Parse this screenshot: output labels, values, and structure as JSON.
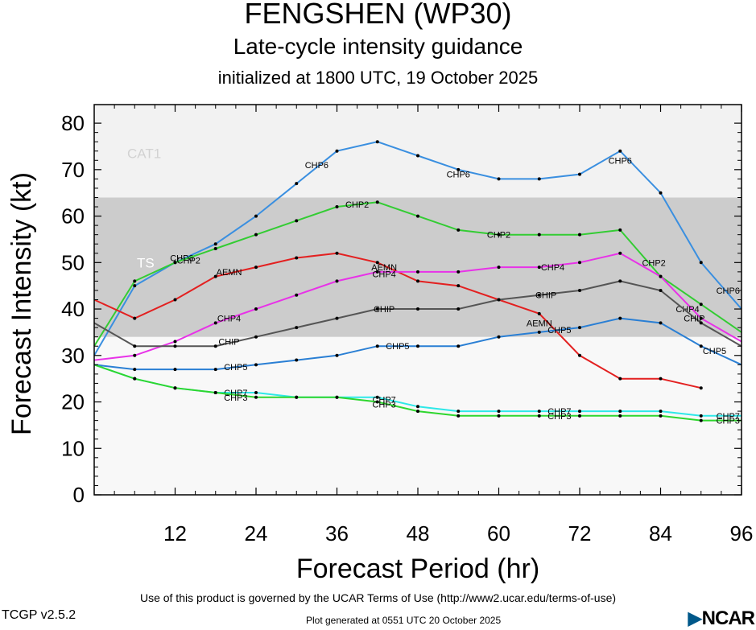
{
  "header": {
    "title": "FENGSHEN (WP30)",
    "subtitle": "Late-cycle intensity guidance",
    "init": "initialized at 1800 UTC, 19 October 2025"
  },
  "footer": {
    "terms": "Use of this product is governed by the UCAR Terms of Use (http://www2.ucar.edu/terms-of-use)",
    "version": "TCGP v2.5.2",
    "generated": "Plot generated at 0551 UTC   20 October 2025",
    "logo": "NCAR"
  },
  "chart_data": {
    "type": "line",
    "xlabel": "Forecast Period (hr)",
    "ylabel": "Forecast Intensity (kt)",
    "xlim": [
      0,
      96
    ],
    "ylim": [
      0,
      84
    ],
    "xticks": [
      12,
      24,
      36,
      48,
      60,
      72,
      84,
      96
    ],
    "yticks": [
      0,
      10,
      20,
      30,
      40,
      50,
      60,
      70,
      80
    ],
    "grid": false,
    "bands": [
      {
        "name": "TS",
        "from": 34,
        "to": 64,
        "color": "#cccccc"
      },
      {
        "name": "CAT1",
        "from": 64,
        "to": 84,
        "color": "#f2f2f2"
      }
    ],
    "below_band_color": "#f8f8f8",
    "series": [
      {
        "name": "CHP6",
        "color": "#3a8fe0",
        "points": [
          [
            0,
            30
          ],
          [
            6,
            45
          ],
          [
            12,
            50
          ],
          [
            18,
            54
          ],
          [
            24,
            60
          ],
          [
            30,
            67
          ],
          [
            36,
            74
          ],
          [
            42,
            76
          ],
          [
            48,
            73
          ],
          [
            54,
            70
          ],
          [
            60,
            68
          ],
          [
            66,
            68
          ],
          [
            72,
            69
          ],
          [
            78,
            74
          ],
          [
            84,
            65
          ],
          [
            90,
            50
          ],
          [
            96,
            40
          ]
        ],
        "labels": [
          [
            13,
            51
          ],
          [
            33,
            71
          ],
          [
            54,
            69
          ],
          [
            78,
            72
          ],
          [
            94,
            44
          ]
        ]
      },
      {
        "name": "CHP2",
        "color": "#33cc33",
        "points": [
          [
            0,
            32
          ],
          [
            6,
            46
          ],
          [
            12,
            50
          ],
          [
            18,
            53
          ],
          [
            24,
            56
          ],
          [
            30,
            59
          ],
          [
            36,
            62
          ],
          [
            42,
            63
          ],
          [
            48,
            60
          ],
          [
            54,
            57
          ],
          [
            60,
            56
          ],
          [
            66,
            56
          ],
          [
            72,
            56
          ],
          [
            78,
            57
          ],
          [
            84,
            47
          ],
          [
            90,
            41
          ],
          [
            96,
            35
          ]
        ],
        "labels": [
          [
            14,
            50.5
          ],
          [
            39,
            62.5
          ],
          [
            60,
            56
          ],
          [
            83,
            50
          ]
        ]
      },
      {
        "name": "AEMN",
        "color": "#e32020",
        "points": [
          [
            0,
            42
          ],
          [
            6,
            38
          ],
          [
            12,
            42
          ],
          [
            18,
            47
          ],
          [
            24,
            49
          ],
          [
            30,
            51
          ],
          [
            36,
            52
          ],
          [
            42,
            50
          ],
          [
            48,
            46
          ],
          [
            54,
            45
          ],
          [
            60,
            42
          ],
          [
            66,
            39
          ],
          [
            72,
            30
          ],
          [
            78,
            25
          ],
          [
            84,
            25
          ],
          [
            90,
            23
          ]
        ],
        "labels": [
          [
            20,
            48
          ],
          [
            43,
            49
          ],
          [
            66,
            37
          ]
        ]
      },
      {
        "name": "CHP4",
        "color": "#e832e8",
        "points": [
          [
            0,
            29
          ],
          [
            6,
            30
          ],
          [
            12,
            33
          ],
          [
            18,
            37
          ],
          [
            24,
            40
          ],
          [
            30,
            43
          ],
          [
            36,
            46
          ],
          [
            42,
            48
          ],
          [
            48,
            48
          ],
          [
            54,
            48
          ],
          [
            60,
            49
          ],
          [
            66,
            49
          ],
          [
            72,
            50
          ],
          [
            78,
            52
          ],
          [
            84,
            47
          ],
          [
            90,
            38
          ],
          [
            96,
            33
          ]
        ],
        "labels": [
          [
            20,
            38
          ],
          [
            43,
            47.5
          ],
          [
            68,
            49
          ],
          [
            88,
            40
          ]
        ]
      },
      {
        "name": "CHIP",
        "color": "#555555",
        "points": [
          [
            0,
            37
          ],
          [
            6,
            32
          ],
          [
            12,
            32
          ],
          [
            18,
            32
          ],
          [
            24,
            34
          ],
          [
            30,
            36
          ],
          [
            36,
            38
          ],
          [
            42,
            40
          ],
          [
            48,
            40
          ],
          [
            54,
            40
          ],
          [
            60,
            42
          ],
          [
            66,
            43
          ],
          [
            72,
            44
          ],
          [
            78,
            46
          ],
          [
            84,
            44
          ],
          [
            90,
            37
          ],
          [
            96,
            32
          ]
        ],
        "labels": [
          [
            20,
            33
          ],
          [
            43,
            40
          ],
          [
            67,
            43
          ],
          [
            89,
            38
          ]
        ]
      },
      {
        "name": "CHP5",
        "color": "#2a7fd4",
        "points": [
          [
            0,
            28
          ],
          [
            6,
            27
          ],
          [
            12,
            27
          ],
          [
            18,
            27
          ],
          [
            24,
            28
          ],
          [
            30,
            29
          ],
          [
            36,
            30
          ],
          [
            42,
            32
          ],
          [
            48,
            32
          ],
          [
            54,
            32
          ],
          [
            60,
            34
          ],
          [
            66,
            35
          ],
          [
            72,
            36
          ],
          [
            78,
            38
          ],
          [
            84,
            37
          ],
          [
            90,
            32
          ],
          [
            96,
            28
          ]
        ],
        "labels": [
          [
            21,
            27.5
          ],
          [
            45,
            32
          ],
          [
            69,
            35.5
          ],
          [
            92,
            31
          ]
        ]
      },
      {
        "name": "CHP7",
        "color": "#2ee8e8",
        "points": [
          [
            0,
            28
          ],
          [
            6,
            25
          ],
          [
            12,
            23
          ],
          [
            18,
            22
          ],
          [
            24,
            22
          ],
          [
            30,
            21
          ],
          [
            36,
            21
          ],
          [
            42,
            21
          ],
          [
            48,
            19
          ],
          [
            54,
            18
          ],
          [
            60,
            18
          ],
          [
            66,
            18
          ],
          [
            72,
            18
          ],
          [
            78,
            18
          ],
          [
            84,
            18
          ],
          [
            90,
            17
          ],
          [
            96,
            17
          ]
        ],
        "labels": [
          [
            21,
            22
          ],
          [
            43,
            20.5
          ],
          [
            69,
            18
          ],
          [
            94,
            17
          ]
        ]
      },
      {
        "name": "CHP3",
        "color": "#2ed62e",
        "points": [
          [
            0,
            28
          ],
          [
            6,
            25
          ],
          [
            12,
            23
          ],
          [
            18,
            22
          ],
          [
            24,
            21
          ],
          [
            30,
            21
          ],
          [
            36,
            21
          ],
          [
            42,
            20
          ],
          [
            48,
            18
          ],
          [
            54,
            17
          ],
          [
            60,
            17
          ],
          [
            66,
            17
          ],
          [
            72,
            17
          ],
          [
            78,
            17
          ],
          [
            84,
            17
          ],
          [
            90,
            16
          ],
          [
            96,
            16
          ]
        ],
        "labels": [
          [
            21,
            21
          ],
          [
            43,
            19.5
          ],
          [
            69,
            17
          ],
          [
            94,
            16
          ]
        ]
      }
    ]
  }
}
